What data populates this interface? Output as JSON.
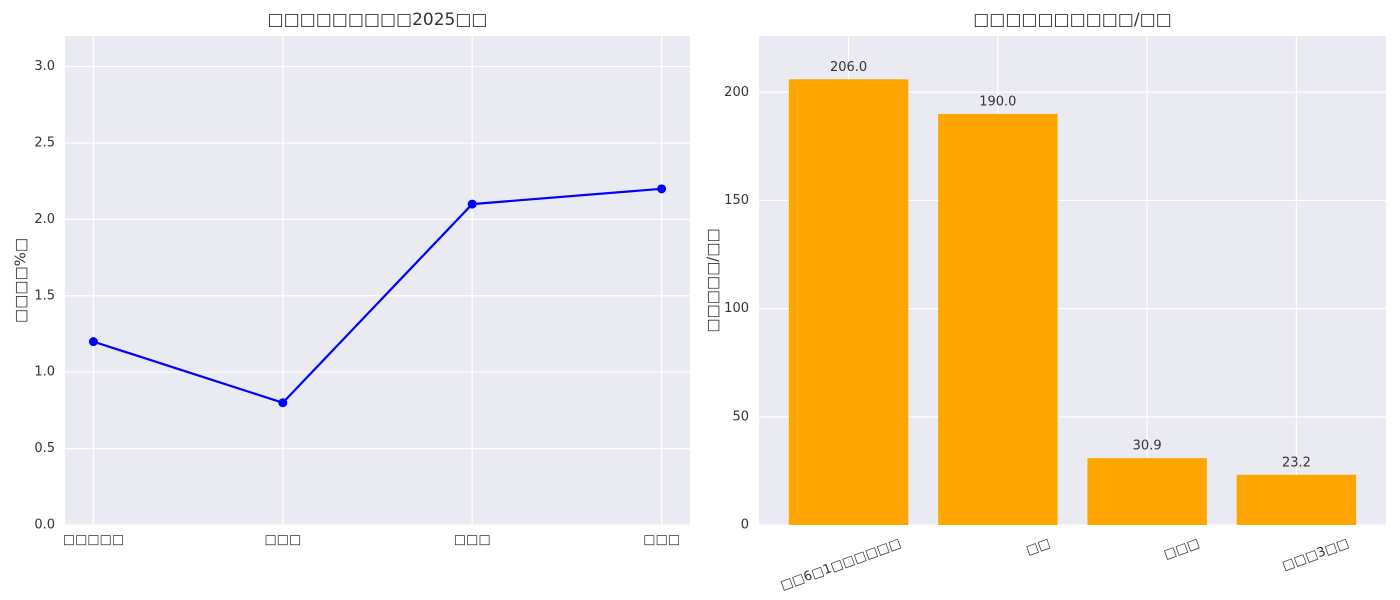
{
  "chart_data": [
    {
      "type": "line",
      "title": "□□□□□□□□□2025□□",
      "y_label": "□□□□%□",
      "categories": [
        "□□□□□",
        "□□□",
        "□□□",
        "□□□"
      ],
      "series": [
        {
          "name": "□□",
          "color": "#0000ff",
          "values": [
            1.2,
            0.8,
            2.1,
            2.2
          ]
        }
      ],
      "ylim": [
        0,
        3.2
      ],
      "yticks": [
        {
          "value": 0,
          "label": "0.0"
        },
        0.5,
        {
          "value": 1,
          "label": "1.0"
        },
        1.5,
        {
          "value": 2,
          "label": "2.0"
        },
        2.5,
        {
          "value": 3,
          "label": "3.0"
        }
      ],
      "grid": true
    },
    {
      "type": "bar",
      "title": "□□□□□□□□□□/□□",
      "y_label": "□□□□□/□□",
      "categories": [
        "□□6□1□□□□□□",
        "□□",
        "□□□",
        "□□□3□□"
      ],
      "values": [
        206.0,
        190.0,
        30.9,
        23.2
      ],
      "value_labels": [
        "206.0",
        "190.0",
        "30.9",
        "23.2"
      ],
      "color": "#ffa500",
      "ylim": [
        0,
        226
      ],
      "yticks": [
        0,
        50,
        100,
        150,
        200
      ],
      "grid": true
    }
  ]
}
